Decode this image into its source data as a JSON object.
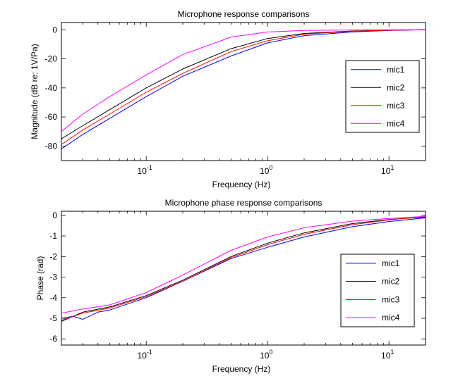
{
  "chart_data": [
    {
      "type": "line",
      "title": "Microphone response comparisons",
      "xlabel": "Frequency (Hz)",
      "ylabel": "Magnitude (dB re: 1V/Pa)",
      "xscale": "log",
      "xlim": [
        0.02,
        20
      ],
      "ylim": [
        -90,
        5
      ],
      "xticks": [
        0.1,
        1,
        10
      ],
      "xtick_labels": [
        {
          "base": "10",
          "exp": "-1"
        },
        {
          "base": "10",
          "exp": "0"
        },
        {
          "base": "10",
          "exp": "1"
        }
      ],
      "yticks": [
        0,
        -20,
        -40,
        -60,
        -80
      ],
      "ytick_labels": [
        "0",
        "-20",
        "-40",
        "-60",
        "-80"
      ],
      "grid": false,
      "legend_position": "right",
      "series": [
        {
          "name": "mic1",
          "color": "#0000ff",
          "x": [
            0.02,
            0.03,
            0.05,
            0.1,
            0.2,
            0.5,
            1,
            2,
            5,
            10,
            20
          ],
          "y": [
            -82,
            -72,
            -61,
            -46,
            -32,
            -18,
            -9,
            -4,
            -1.5,
            -0.5,
            0
          ]
        },
        {
          "name": "mic2",
          "color": "#000000",
          "x": [
            0.02,
            0.03,
            0.05,
            0.1,
            0.2,
            0.5,
            1,
            2,
            5,
            10,
            20
          ],
          "y": [
            -75,
            -66,
            -55,
            -40,
            -27,
            -13,
            -6,
            -2.5,
            -0.8,
            -0.3,
            0
          ]
        },
        {
          "name": "mic3",
          "color": "#ff0000",
          "x": [
            0.02,
            0.03,
            0.05,
            0.1,
            0.2,
            0.5,
            1,
            2,
            5,
            10,
            20
          ],
          "y": [
            -79,
            -69,
            -58,
            -43,
            -30,
            -15,
            -7.5,
            -3,
            -1,
            -0.4,
            0
          ]
        },
        {
          "name": "mic4",
          "color": "#ff00ff",
          "x": [
            0.02,
            0.03,
            0.05,
            0.1,
            0.2,
            0.5,
            1,
            2,
            5,
            10,
            20
          ],
          "y": [
            -70,
            -58,
            -46,
            -31,
            -17,
            -5,
            -1.5,
            -0.5,
            -0.1,
            0,
            0
          ]
        }
      ]
    },
    {
      "type": "line",
      "title": "Microphone phase response comparisons",
      "xlabel": "Frequency (Hz)",
      "ylabel": "Phase (rad)",
      "xscale": "log",
      "xlim": [
        0.02,
        20
      ],
      "ylim": [
        -6.3,
        0.2
      ],
      "xticks": [
        0.1,
        1,
        10
      ],
      "xtick_labels": [
        {
          "base": "10",
          "exp": "-1"
        },
        {
          "base": "10",
          "exp": "0"
        },
        {
          "base": "10",
          "exp": "1"
        }
      ],
      "yticks": [
        0,
        -1,
        -2,
        -3,
        -4,
        -5,
        -6
      ],
      "ytick_labels": [
        "0",
        "-1",
        "-2",
        "-3",
        "-4",
        "-5",
        "-6"
      ],
      "grid": false,
      "legend_position": "lower right",
      "series": [
        {
          "name": "mic1",
          "color": "#0000ff",
          "x": [
            0.02,
            0.025,
            0.03,
            0.04,
            0.05,
            0.1,
            0.2,
            0.5,
            1,
            2,
            5,
            10,
            20
          ],
          "y": [
            -5.0,
            -4.9,
            -5.05,
            -4.7,
            -4.6,
            -4.0,
            -3.2,
            -2.1,
            -1.55,
            -1.05,
            -0.55,
            -0.3,
            -0.12
          ]
        },
        {
          "name": "mic2",
          "color": "#000000",
          "x": [
            0.02,
            0.03,
            0.05,
            0.1,
            0.2,
            0.5,
            1,
            2,
            5,
            10,
            20
          ],
          "y": [
            -5.15,
            -4.7,
            -4.45,
            -3.9,
            -3.15,
            -2.0,
            -1.35,
            -0.85,
            -0.4,
            -0.2,
            -0.08
          ]
        },
        {
          "name": "mic3",
          "color": "#ff0000",
          "x": [
            0.02,
            0.03,
            0.05,
            0.1,
            0.2,
            0.5,
            1,
            2,
            5,
            10,
            20
          ],
          "y": [
            -5.1,
            -4.75,
            -4.5,
            -3.95,
            -3.2,
            -2.05,
            -1.42,
            -0.92,
            -0.45,
            -0.22,
            -0.05
          ]
        },
        {
          "name": "mic4",
          "color": "#ff00ff",
          "x": [
            0.02,
            0.03,
            0.05,
            0.1,
            0.2,
            0.5,
            1,
            2,
            5,
            10,
            20
          ],
          "y": [
            -4.75,
            -4.55,
            -4.35,
            -3.75,
            -2.9,
            -1.7,
            -1.05,
            -0.6,
            -0.28,
            -0.15,
            -0.05
          ]
        }
      ]
    }
  ]
}
